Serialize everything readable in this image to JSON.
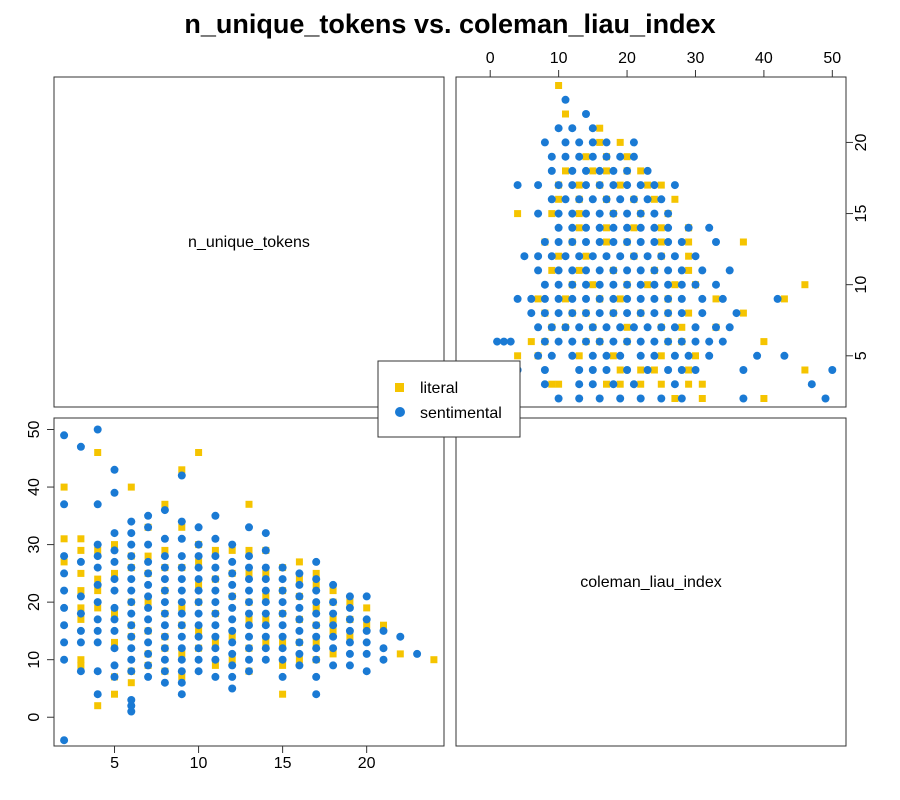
{
  "chart_data": {
    "type": "scatter",
    "title": "n_unique_tokens vs. coleman_liau_index",
    "layout": "pairs-matrix",
    "variables": [
      "n_unique_tokens",
      "coleman_liau_index"
    ],
    "colors": {
      "literal": "#F5C400",
      "sentimental": "#1A7AD4"
    },
    "legend": {
      "position": "center",
      "entries": [
        {
          "name": "literal",
          "marker": "square"
        },
        {
          "name": "sentimental",
          "marker": "circle"
        }
      ]
    },
    "axes": {
      "n_unique_tokens": {
        "range": [
          1.4,
          24.6
        ],
        "ticks": [
          5,
          10,
          15,
          20
        ]
      },
      "coleman_liau_index": {
        "range": [
          -5,
          52
        ],
        "ticks": [
          0,
          10,
          20,
          30,
          40,
          50
        ]
      }
    },
    "series": [
      {
        "name": "literal",
        "points": [
          [
            2,
            40
          ],
          [
            2,
            31
          ],
          [
            2,
            27
          ],
          [
            3,
            31
          ],
          [
            3,
            29
          ],
          [
            3,
            25
          ],
          [
            3,
            22
          ],
          [
            3,
            19
          ],
          [
            3,
            17
          ],
          [
            3,
            10
          ],
          [
            3,
            9
          ],
          [
            4,
            46
          ],
          [
            4,
            29
          ],
          [
            4,
            24
          ],
          [
            4,
            22
          ],
          [
            4,
            19
          ],
          [
            4,
            2
          ],
          [
            5,
            30
          ],
          [
            5,
            25
          ],
          [
            5,
            18
          ],
          [
            5,
            13
          ],
          [
            5,
            7
          ],
          [
            5,
            4
          ],
          [
            6,
            40
          ],
          [
            6,
            28
          ],
          [
            6,
            26
          ],
          [
            6,
            20
          ],
          [
            6,
            16
          ],
          [
            6,
            14
          ],
          [
            6,
            8
          ],
          [
            6,
            6
          ],
          [
            7,
            33
          ],
          [
            7,
            28
          ],
          [
            7,
            25
          ],
          [
            7,
            20
          ],
          [
            7,
            15
          ],
          [
            7,
            11
          ],
          [
            7,
            9
          ],
          [
            8,
            37
          ],
          [
            8,
            29
          ],
          [
            8,
            26
          ],
          [
            8,
            22
          ],
          [
            8,
            18
          ],
          [
            8,
            14
          ],
          [
            8,
            12
          ],
          [
            8,
            8
          ],
          [
            9,
            43
          ],
          [
            9,
            33
          ],
          [
            9,
            26
          ],
          [
            9,
            19
          ],
          [
            9,
            16
          ],
          [
            9,
            11
          ],
          [
            9,
            7
          ],
          [
            10,
            46
          ],
          [
            10,
            30
          ],
          [
            10,
            27
          ],
          [
            10,
            23
          ],
          [
            10,
            20
          ],
          [
            10,
            15
          ],
          [
            10,
            12
          ],
          [
            11,
            29
          ],
          [
            11,
            24
          ],
          [
            11,
            18
          ],
          [
            11,
            13
          ],
          [
            11,
            9
          ],
          [
            12,
            29
          ],
          [
            12,
            25
          ],
          [
            12,
            21
          ],
          [
            12,
            14
          ],
          [
            12,
            10
          ],
          [
            13,
            37
          ],
          [
            13,
            29
          ],
          [
            13,
            25
          ],
          [
            13,
            20
          ],
          [
            13,
            17
          ],
          [
            13,
            12
          ],
          [
            13,
            8
          ],
          [
            14,
            29
          ],
          [
            14,
            25
          ],
          [
            14,
            21
          ],
          [
            14,
            17
          ],
          [
            14,
            13
          ],
          [
            15,
            26
          ],
          [
            15,
            22
          ],
          [
            15,
            18
          ],
          [
            15,
            13
          ],
          [
            15,
            9
          ],
          [
            15,
            4
          ],
          [
            16,
            27
          ],
          [
            16,
            24
          ],
          [
            16,
            21
          ],
          [
            16,
            17
          ],
          [
            16,
            13
          ],
          [
            16,
            10
          ],
          [
            17,
            25
          ],
          [
            17,
            23
          ],
          [
            17,
            19
          ],
          [
            17,
            16
          ],
          [
            17,
            13
          ],
          [
            17,
            10
          ],
          [
            18,
            22
          ],
          [
            18,
            20
          ],
          [
            18,
            17
          ],
          [
            18,
            15
          ],
          [
            18,
            11
          ],
          [
            19,
            20
          ],
          [
            19,
            17
          ],
          [
            19,
            14
          ],
          [
            20,
            19
          ],
          [
            20,
            16
          ],
          [
            21,
            16
          ],
          [
            22,
            11
          ],
          [
            24,
            10
          ]
        ]
      },
      {
        "name": "sentimental",
        "points": [
          [
            2,
            49
          ],
          [
            2,
            37
          ],
          [
            2,
            28
          ],
          [
            2,
            25
          ],
          [
            2,
            22
          ],
          [
            2,
            19
          ],
          [
            2,
            16
          ],
          [
            2,
            13
          ],
          [
            2,
            10
          ],
          [
            2,
            -4
          ],
          [
            3,
            47
          ],
          [
            3,
            27
          ],
          [
            3,
            21
          ],
          [
            3,
            18
          ],
          [
            3,
            15
          ],
          [
            3,
            13
          ],
          [
            3,
            8
          ],
          [
            4,
            50
          ],
          [
            4,
            37
          ],
          [
            4,
            30
          ],
          [
            4,
            28
          ],
          [
            4,
            26
          ],
          [
            4,
            23
          ],
          [
            4,
            20
          ],
          [
            4,
            17
          ],
          [
            4,
            15
          ],
          [
            4,
            13
          ],
          [
            4,
            8
          ],
          [
            4,
            4
          ],
          [
            5,
            43
          ],
          [
            5,
            39
          ],
          [
            5,
            32
          ],
          [
            5,
            29
          ],
          [
            5,
            27
          ],
          [
            5,
            24
          ],
          [
            5,
            22
          ],
          [
            5,
            19
          ],
          [
            5,
            17
          ],
          [
            5,
            15
          ],
          [
            5,
            12
          ],
          [
            5,
            9
          ],
          [
            5,
            7
          ],
          [
            6,
            34
          ],
          [
            6,
            32
          ],
          [
            6,
            30
          ],
          [
            6,
            28
          ],
          [
            6,
            26
          ],
          [
            6,
            24
          ],
          [
            6,
            22
          ],
          [
            6,
            20
          ],
          [
            6,
            18
          ],
          [
            6,
            16
          ],
          [
            6,
            14
          ],
          [
            6,
            12
          ],
          [
            6,
            10
          ],
          [
            6,
            8
          ],
          [
            6,
            3
          ],
          [
            6,
            2
          ],
          [
            6,
            1
          ],
          [
            7,
            35
          ],
          [
            7,
            33
          ],
          [
            7,
            30
          ],
          [
            7,
            27
          ],
          [
            7,
            25
          ],
          [
            7,
            23
          ],
          [
            7,
            21
          ],
          [
            7,
            19
          ],
          [
            7,
            17
          ],
          [
            7,
            15
          ],
          [
            7,
            13
          ],
          [
            7,
            11
          ],
          [
            7,
            9
          ],
          [
            7,
            7
          ],
          [
            8,
            36
          ],
          [
            8,
            31
          ],
          [
            8,
            28
          ],
          [
            8,
            26
          ],
          [
            8,
            24
          ],
          [
            8,
            22
          ],
          [
            8,
            20
          ],
          [
            8,
            18
          ],
          [
            8,
            16
          ],
          [
            8,
            14
          ],
          [
            8,
            12
          ],
          [
            8,
            10
          ],
          [
            8,
            8
          ],
          [
            8,
            6
          ],
          [
            9,
            42
          ],
          [
            9,
            34
          ],
          [
            9,
            31
          ],
          [
            9,
            28
          ],
          [
            9,
            26
          ],
          [
            9,
            24
          ],
          [
            9,
            22
          ],
          [
            9,
            20
          ],
          [
            9,
            18
          ],
          [
            9,
            16
          ],
          [
            9,
            14
          ],
          [
            9,
            12
          ],
          [
            9,
            10
          ],
          [
            9,
            8
          ],
          [
            9,
            6
          ],
          [
            9,
            4
          ],
          [
            10,
            33
          ],
          [
            10,
            30
          ],
          [
            10,
            28
          ],
          [
            10,
            26
          ],
          [
            10,
            24
          ],
          [
            10,
            22
          ],
          [
            10,
            20
          ],
          [
            10,
            18
          ],
          [
            10,
            16
          ],
          [
            10,
            14
          ],
          [
            10,
            12
          ],
          [
            10,
            10
          ],
          [
            10,
            8
          ],
          [
            11,
            35
          ],
          [
            11,
            31
          ],
          [
            11,
            28
          ],
          [
            11,
            26
          ],
          [
            11,
            24
          ],
          [
            11,
            22
          ],
          [
            11,
            20
          ],
          [
            11,
            18
          ],
          [
            11,
            16
          ],
          [
            11,
            14
          ],
          [
            11,
            12
          ],
          [
            11,
            10
          ],
          [
            11,
            7
          ],
          [
            12,
            30
          ],
          [
            12,
            27
          ],
          [
            12,
            25
          ],
          [
            12,
            23
          ],
          [
            12,
            21
          ],
          [
            12,
            19
          ],
          [
            12,
            17
          ],
          [
            12,
            15
          ],
          [
            12,
            13
          ],
          [
            12,
            11
          ],
          [
            12,
            9
          ],
          [
            12,
            7
          ],
          [
            12,
            5
          ],
          [
            13,
            33
          ],
          [
            13,
            28
          ],
          [
            13,
            26
          ],
          [
            13,
            24
          ],
          [
            13,
            22
          ],
          [
            13,
            20
          ],
          [
            13,
            18
          ],
          [
            13,
            16
          ],
          [
            13,
            14
          ],
          [
            13,
            12
          ],
          [
            13,
            10
          ],
          [
            13,
            8
          ],
          [
            14,
            32
          ],
          [
            14,
            29
          ],
          [
            14,
            26
          ],
          [
            14,
            24
          ],
          [
            14,
            22
          ],
          [
            14,
            20
          ],
          [
            14,
            18
          ],
          [
            14,
            16
          ],
          [
            14,
            14
          ],
          [
            14,
            12
          ],
          [
            14,
            10
          ],
          [
            15,
            26
          ],
          [
            15,
            24
          ],
          [
            15,
            22
          ],
          [
            15,
            20
          ],
          [
            15,
            18
          ],
          [
            15,
            16
          ],
          [
            15,
            14
          ],
          [
            15,
            12
          ],
          [
            15,
            10
          ],
          [
            15,
            7
          ],
          [
            16,
            25
          ],
          [
            16,
            23
          ],
          [
            16,
            21
          ],
          [
            16,
            19
          ],
          [
            16,
            17
          ],
          [
            16,
            15
          ],
          [
            16,
            13
          ],
          [
            16,
            11
          ],
          [
            16,
            9
          ],
          [
            17,
            27
          ],
          [
            17,
            24
          ],
          [
            17,
            22
          ],
          [
            17,
            20
          ],
          [
            17,
            18
          ],
          [
            17,
            16
          ],
          [
            17,
            14
          ],
          [
            17,
            12
          ],
          [
            17,
            10
          ],
          [
            17,
            7
          ],
          [
            17,
            4
          ],
          [
            18,
            23
          ],
          [
            18,
            20
          ],
          [
            18,
            18
          ],
          [
            18,
            16
          ],
          [
            18,
            14
          ],
          [
            18,
            12
          ],
          [
            18,
            9
          ],
          [
            19,
            21
          ],
          [
            19,
            19
          ],
          [
            19,
            17
          ],
          [
            19,
            15
          ],
          [
            19,
            13
          ],
          [
            19,
            11
          ],
          [
            19,
            9
          ],
          [
            20,
            21
          ],
          [
            20,
            17
          ],
          [
            20,
            15
          ],
          [
            20,
            13
          ],
          [
            20,
            11
          ],
          [
            20,
            8
          ],
          [
            21,
            15
          ],
          [
            21,
            12
          ],
          [
            21,
            10
          ],
          [
            22,
            14
          ],
          [
            23,
            11
          ]
        ]
      }
    ]
  }
}
